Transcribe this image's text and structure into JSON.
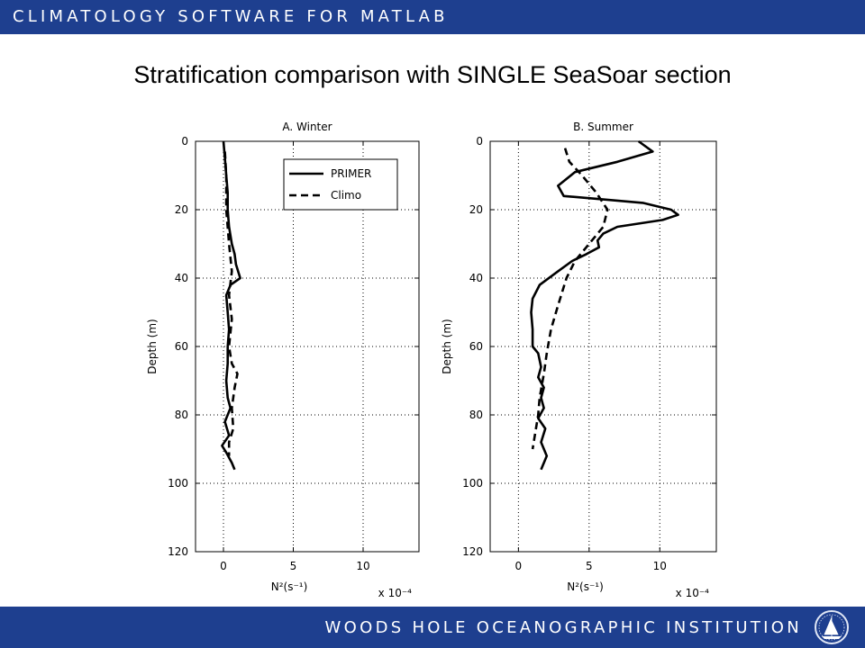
{
  "header": {
    "banner_text": "CLIMATOLOGY SOFTWARE FOR MATLAB"
  },
  "slide": {
    "title": "Stratification comparison with SINGLE SeaSoar section"
  },
  "footer": {
    "institution": "WOODS HOLE OCEANOGRAPHIC INSTITUTION",
    "logo_icon": "whoi-sailboat-logo-icon"
  },
  "colors": {
    "banner": "#1e3f8f",
    "text": "#000000",
    "banner_text": "#ffffff"
  },
  "chart_data": [
    {
      "type": "line",
      "title": "A. Winter",
      "xlabel": "N²(s⁻¹)",
      "ylabel": "Depth (m)",
      "x_multiplier": "x 10⁻⁴",
      "xlim": [
        -2,
        14
      ],
      "ylim": [
        0,
        120
      ],
      "y_reversed": true,
      "grid": true,
      "x_ticks": [
        0,
        5,
        10
      ],
      "y_ticks": [
        0,
        20,
        40,
        60,
        80,
        100,
        120
      ],
      "legend": {
        "placement": "top-right",
        "entries": [
          "PRIMER",
          "Climo"
        ]
      },
      "series": [
        {
          "name": "PRIMER",
          "style": "solid",
          "points": [
            [
              0,
              0
            ],
            [
              0.1,
              5
            ],
            [
              0.2,
              10
            ],
            [
              0.3,
              15
            ],
            [
              0.3,
              20
            ],
            [
              0.4,
              25
            ],
            [
              0.6,
              30
            ],
            [
              0.8,
              33
            ],
            [
              0.9,
              36
            ],
            [
              1.2,
              40
            ],
            [
              0.5,
              42
            ],
            [
              0.2,
              45
            ],
            [
              0.3,
              50
            ],
            [
              0.4,
              55
            ],
            [
              0.3,
              60
            ],
            [
              0.3,
              65
            ],
            [
              0.2,
              70
            ],
            [
              0.3,
              75
            ],
            [
              0.5,
              78
            ],
            [
              0.1,
              82
            ],
            [
              0.4,
              86
            ],
            [
              -0.1,
              89
            ],
            [
              0.2,
              91
            ],
            [
              0.6,
              94
            ],
            [
              0.8,
              96
            ]
          ]
        },
        {
          "name": "Climo",
          "style": "dashed",
          "points": [
            [
              0.1,
              3
            ],
            [
              0.2,
              10
            ],
            [
              0.2,
              20
            ],
            [
              0.4,
              30
            ],
            [
              0.6,
              38
            ],
            [
              0.4,
              45
            ],
            [
              0.6,
              52
            ],
            [
              0.4,
              60
            ],
            [
              0.6,
              65
            ],
            [
              1.0,
              68
            ],
            [
              0.8,
              72
            ],
            [
              0.6,
              78
            ],
            [
              0.7,
              84
            ],
            [
              0.4,
              88
            ],
            [
              0.4,
              92
            ]
          ]
        }
      ]
    },
    {
      "type": "line",
      "title": "B. Summer",
      "xlabel": "N²(s⁻¹)",
      "ylabel": "Depth (m)",
      "x_multiplier": "x 10⁻⁴",
      "xlim": [
        -2,
        14
      ],
      "ylim": [
        0,
        120
      ],
      "y_reversed": true,
      "grid": true,
      "x_ticks": [
        0,
        5,
        10
      ],
      "y_ticks": [
        0,
        20,
        40,
        60,
        80,
        100,
        120
      ],
      "series": [
        {
          "name": "PRIMER",
          "style": "solid",
          "points": [
            [
              8.5,
              0
            ],
            [
              9.5,
              3
            ],
            [
              7,
              6
            ],
            [
              4,
              9
            ],
            [
              2.8,
              13
            ],
            [
              3.2,
              16
            ],
            [
              6,
              17
            ],
            [
              8.8,
              18
            ],
            [
              10.8,
              20
            ],
            [
              11.3,
              21.5
            ],
            [
              10.2,
              23
            ],
            [
              7,
              25
            ],
            [
              6,
              27
            ],
            [
              5.6,
              29
            ],
            [
              5.7,
              31
            ],
            [
              4.8,
              33
            ],
            [
              3.8,
              35
            ],
            [
              2.8,
              38
            ],
            [
              1.5,
              42
            ],
            [
              1.0,
              46
            ],
            [
              0.9,
              50
            ],
            [
              1.0,
              55
            ],
            [
              1.0,
              60
            ],
            [
              1.4,
              62
            ],
            [
              1.6,
              66
            ],
            [
              1.4,
              69
            ],
            [
              1.8,
              72
            ],
            [
              1.6,
              75
            ],
            [
              1.8,
              78
            ],
            [
              1.4,
              81
            ],
            [
              1.9,
              84
            ],
            [
              1.6,
              88
            ],
            [
              2.0,
              92
            ],
            [
              1.6,
              96
            ]
          ]
        },
        {
          "name": "Climo",
          "style": "dashed",
          "points": [
            [
              3.3,
              2
            ],
            [
              3.6,
              6
            ],
            [
              4.5,
              10
            ],
            [
              5.5,
              15
            ],
            [
              6.3,
              20
            ],
            [
              6.0,
              25
            ],
            [
              5.0,
              30
            ],
            [
              4.0,
              35
            ],
            [
              3.4,
              40
            ],
            [
              2.8,
              48
            ],
            [
              2.3,
              55
            ],
            [
              2.0,
              62
            ],
            [
              1.8,
              68
            ],
            [
              1.5,
              75
            ],
            [
              1.4,
              80
            ],
            [
              1.2,
              85
            ],
            [
              1.0,
              90
            ]
          ]
        }
      ]
    }
  ]
}
